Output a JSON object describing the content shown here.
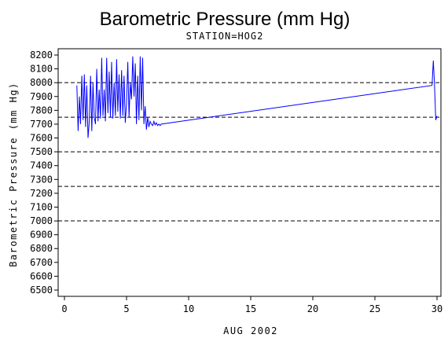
{
  "chart_data": {
    "type": "line",
    "title": "Barometric Pressure (mm Hg)",
    "subtitle": "STATION=HOG2",
    "xlabel": "AUG 2002",
    "ylabel": "Barometric Pressure (mm Hg)",
    "xlim": [
      0,
      30
    ],
    "ylim": [
      6500,
      8200
    ],
    "x_ticks": [
      0,
      5,
      10,
      15,
      20,
      25,
      30
    ],
    "y_ticks": [
      6500,
      6600,
      6700,
      6800,
      6900,
      7000,
      7100,
      7200,
      7300,
      7400,
      7500,
      7600,
      7700,
      7800,
      7900,
      8000,
      8100,
      8200
    ],
    "reference_lines": [
      7000,
      7250,
      7500,
      7750,
      8000
    ],
    "line_color": "#0000ff",
    "series": [
      {
        "x": [
          1.0,
          1.1,
          1.2,
          1.3,
          1.4,
          1.5,
          1.6,
          1.7,
          1.8,
          1.9,
          2.0,
          2.1,
          2.2,
          2.3,
          2.4,
          2.5,
          2.6,
          2.7,
          2.8,
          2.9,
          3.0,
          3.1,
          3.2,
          3.3,
          3.4,
          3.5,
          3.6,
          3.7,
          3.8,
          3.9,
          4.0,
          4.1,
          4.2,
          4.3,
          4.4,
          4.5,
          4.6,
          4.7,
          4.8,
          4.9,
          5.0,
          5.1,
          5.2,
          5.3,
          5.4,
          5.5,
          5.6,
          5.7,
          5.8,
          5.9,
          6.0,
          6.1,
          6.2,
          6.3,
          6.4,
          6.5,
          6.6,
          6.7,
          6.8,
          6.9,
          7.0,
          7.1,
          7.2,
          7.3,
          7.4,
          7.5,
          7.6,
          7.7,
          7.8,
          29.6,
          29.7,
          29.8,
          29.9,
          30.0
        ],
        "y": [
          7980,
          7650,
          7900,
          7700,
          8050,
          7730,
          8060,
          7680,
          7980,
          7600,
          7720,
          8050,
          7650,
          8000,
          7750,
          7700,
          8100,
          7720,
          7950,
          7740,
          8180,
          7760,
          7950,
          7720,
          8180,
          7780,
          8080,
          7750,
          8150,
          7740,
          8000,
          7760,
          8170,
          7790,
          8060,
          7740,
          8090,
          7760,
          8050,
          7710,
          7850,
          8150,
          7750,
          8000,
          7880,
          8190,
          7900,
          8140,
          7700,
          8050,
          7730,
          8190,
          7800,
          8180,
          7700,
          7830,
          7660,
          7750,
          7680,
          7720,
          7700,
          7690,
          7720,
          7695,
          7710,
          7690,
          7700,
          7690,
          7700,
          7980,
          8160,
          7990,
          7730,
          7760
        ]
      }
    ]
  }
}
